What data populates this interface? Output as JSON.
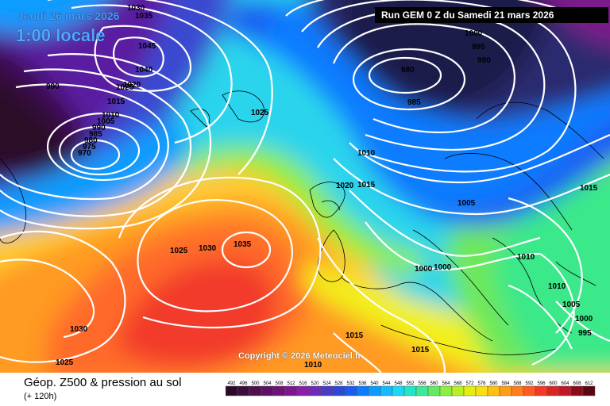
{
  "header": {
    "date": "Jeudi 26 mars 2026",
    "time": "1:00 locale",
    "run": "Run GEM 0 Z du Samedi 21 mars 2026"
  },
  "copyright": "Copyright © 2026 Meteociel.fr",
  "footer": {
    "title": "Géop. Z500 & pression au sol",
    "subtitle": "(+ 120h)"
  },
  "pressure_labels": [
    {
      "text": "1035"
    },
    {
      "text": "1030"
    },
    {
      "text": "1045"
    },
    {
      "text": "1040"
    },
    {
      "text": "1025"
    },
    {
      "text": "990"
    },
    {
      "text": "1020"
    },
    {
      "text": "1015"
    },
    {
      "text": "1010"
    },
    {
      "text": "1005"
    },
    {
      "text": "990"
    },
    {
      "text": "985"
    },
    {
      "text": "980"
    },
    {
      "text": "975"
    },
    {
      "text": "970"
    },
    {
      "text": "1025"
    },
    {
      "text": "1000"
    },
    {
      "text": "995"
    },
    {
      "text": "990"
    },
    {
      "text": "980"
    },
    {
      "text": "985"
    },
    {
      "text": "1010"
    },
    {
      "text": "1020"
    },
    {
      "text": "1015"
    },
    {
      "text": "1005"
    },
    {
      "text": "1015"
    },
    {
      "text": "1010"
    },
    {
      "text": "1000"
    },
    {
      "text": "1000"
    },
    {
      "text": "1010"
    },
    {
      "text": "1005"
    },
    {
      "text": "1000"
    },
    {
      "text": "995"
    },
    {
      "text": "1025"
    },
    {
      "text": "1030"
    },
    {
      "text": "1035"
    },
    {
      "text": "1030"
    },
    {
      "text": "1025"
    },
    {
      "text": "1015"
    },
    {
      "text": "1015"
    },
    {
      "text": "1010"
    }
  ],
  "scale": {
    "ticks": [
      "492",
      "496",
      "500",
      "504",
      "508",
      "512",
      "516",
      "520",
      "524",
      "528",
      "532",
      "536",
      "540",
      "544",
      "548",
      "552",
      "556",
      "560",
      "564",
      "568",
      "572",
      "576",
      "580",
      "584",
      "588",
      "592",
      "596",
      "600",
      "604",
      "608",
      "612"
    ],
    "colors": [
      "#2a0a28",
      "#3a0d3a",
      "#4d104d",
      "#5e1062",
      "#6e1278",
      "#7c168e",
      "#8a1ea8",
      "#6e2ab8",
      "#4a3ac4",
      "#2b48d6",
      "#1a5cf0",
      "#0a7cff",
      "#0a9cff",
      "#12bcff",
      "#18d8f4",
      "#22e6c8",
      "#3aea96",
      "#62ea62",
      "#8ef03e",
      "#baf022",
      "#e2f010",
      "#fae010",
      "#ffc010",
      "#ff9e14",
      "#ff7e1c",
      "#ff5a22",
      "#f23a24",
      "#da2424",
      "#c01826",
      "#8a0c18",
      "#5a0610"
    ]
  }
}
